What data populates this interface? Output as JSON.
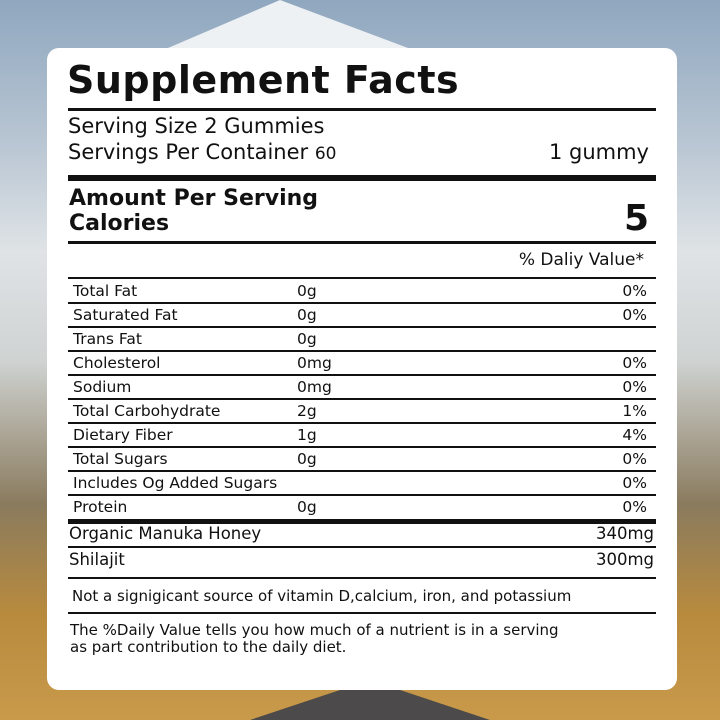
{
  "label": {
    "title": "Supplement Facts",
    "serving_size": "Serving Size 2 Gummies",
    "servings_per_container_label": "Servings Per Container",
    "servings_per_container_value": "60",
    "per_unit": "1 gummy",
    "amount_per_serving": "Amount Per Serving",
    "calories_label": "Calories",
    "calories_value": "5",
    "dv_header": "% Daliy Value*",
    "nutrients": [
      {
        "name": "Total Fat",
        "amount": "0g",
        "dv": "0%"
      },
      {
        "name": "Saturated Fat",
        "amount": "0g",
        "dv": "0%"
      },
      {
        "name": "Trans Fat",
        "amount": "0g",
        "dv": ""
      },
      {
        "name": "Cholesterol",
        "amount": "0mg",
        "dv": "0%"
      },
      {
        "name": "Sodium",
        "amount": "0mg",
        "dv": "0%"
      },
      {
        "name": "Total Carbohydrate",
        "amount": "2g",
        "dv": "1%"
      },
      {
        "name": "Dietary Fiber",
        "amount": "1g",
        "dv": "4%"
      },
      {
        "name": "Total Sugars",
        "amount": "0g",
        "dv": "0%"
      },
      {
        "name": "Includes Og Added Sugars",
        "amount": "",
        "dv": "0%"
      },
      {
        "name": "Protein",
        "amount": "0g",
        "dv": "0%"
      }
    ],
    "ingredients": [
      {
        "name": "Organic Manuka Honey",
        "amount": "340mg"
      },
      {
        "name": "Shilajit",
        "amount": "300mg"
      }
    ],
    "not_significant": "Not a signigicant source of vitamin D,calcium, iron, and potassium",
    "footnote_line1": "The %Daily Value tells you how much of a nutrient is in a serving",
    "footnote_line2": "as part contribution to the daily diet."
  }
}
